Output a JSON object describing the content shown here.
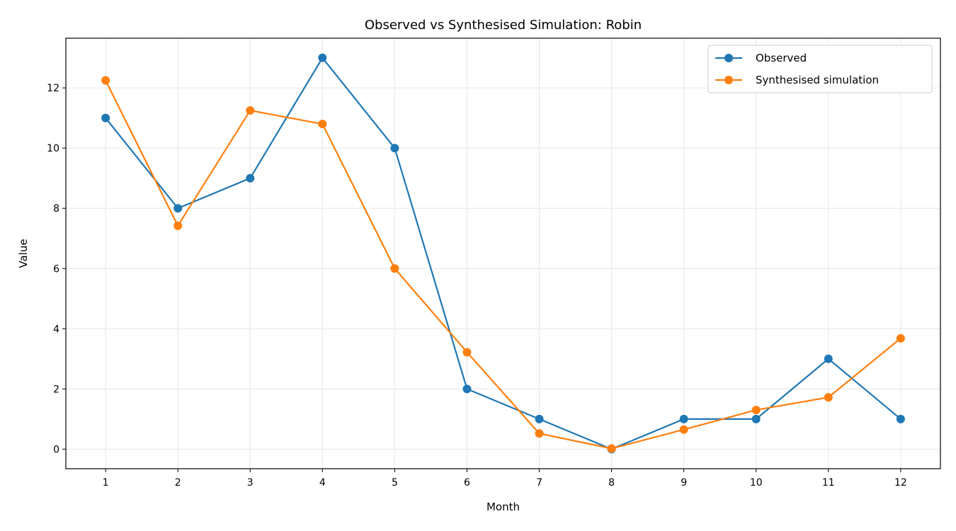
{
  "chart_data": {
    "type": "line",
    "title": "Observed vs Synthesised Simulation: Robin",
    "xlabel": "Month",
    "ylabel": "Value",
    "x": [
      1,
      2,
      3,
      4,
      5,
      6,
      7,
      8,
      9,
      10,
      11,
      12
    ],
    "x_tick_labels": [
      "1",
      "2",
      "3",
      "4",
      "5",
      "6",
      "7",
      "8",
      "9",
      "10",
      "11",
      "12"
    ],
    "y_ticks": [
      0,
      2,
      4,
      6,
      8,
      10,
      12
    ],
    "y_tick_labels": [
      "0",
      "2",
      "4",
      "6",
      "8",
      "10",
      "12"
    ],
    "xlim": [
      0.45,
      12.55
    ],
    "ylim": [
      -0.65,
      13.65
    ],
    "grid": true,
    "legend_position": "top-right",
    "series": [
      {
        "name": "Observed",
        "color": "#1f77b4",
        "marker": "circle",
        "values": [
          11,
          8,
          9,
          13,
          10,
          2,
          1,
          0,
          1,
          1,
          3,
          1
        ]
      },
      {
        "name": "Synthesised simulation",
        "color": "#ff7f0e",
        "marker": "circle",
        "values": [
          12.25,
          7.42,
          11.25,
          10.8,
          6.0,
          3.22,
          0.52,
          0.02,
          0.65,
          1.3,
          1.72,
          3.68
        ]
      }
    ]
  }
}
